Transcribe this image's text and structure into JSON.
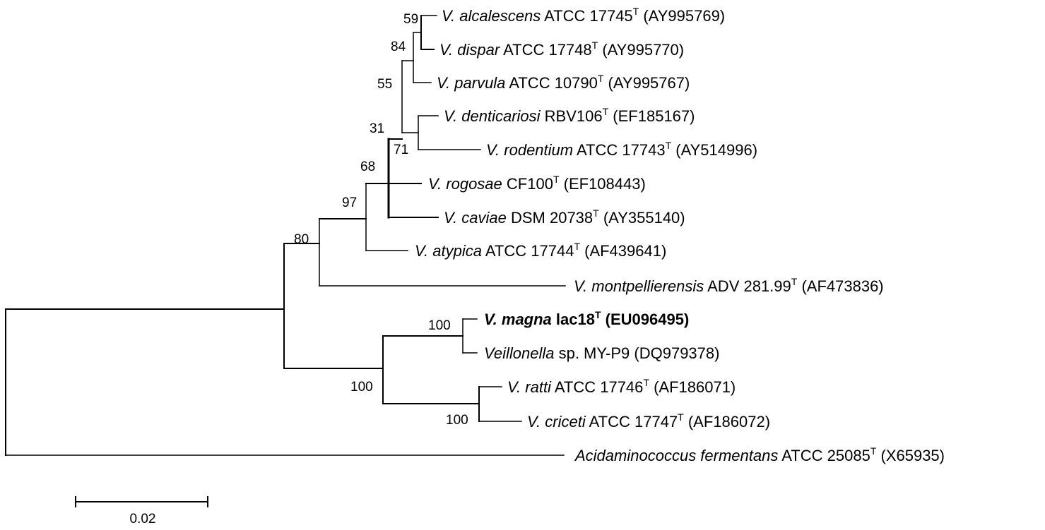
{
  "taxa": [
    {
      "id": "alcalescens",
      "genus": "V. alcalescens",
      "rest": " ATCC 17745",
      "sup": "T",
      "acc": " (AY995769)",
      "bold": false
    },
    {
      "id": "dispar",
      "genus": "V. dispar",
      "rest": " ATCC 17748",
      "sup": "T",
      "acc": " (AY995770)",
      "bold": false
    },
    {
      "id": "parvula",
      "genus": "V. parvula",
      "rest": " ATCC 10790",
      "sup": "T",
      "acc": " (AY995767)",
      "bold": false
    },
    {
      "id": "denticariosi",
      "genus": "V. denticariosi",
      "rest": " RBV106",
      "sup": "T",
      "acc": " (EF185167)",
      "bold": false
    },
    {
      "id": "rodentium",
      "genus": "V. rodentium",
      "rest": " ATCC 17743",
      "sup": "T",
      "acc": " (AY514996)",
      "bold": false
    },
    {
      "id": "rogosae",
      "genus": "V. rogosae",
      "rest": " CF100",
      "sup": "T",
      "acc": " (EF108443)",
      "bold": false
    },
    {
      "id": "caviae",
      "genus": "V. caviae",
      "rest": " DSM 20738",
      "sup": "T",
      "acc": " (AY355140)",
      "bold": false
    },
    {
      "id": "atypica",
      "genus": "V. atypica",
      "rest": " ATCC 17744",
      "sup": "T",
      "acc": " (AF439641)",
      "bold": false
    },
    {
      "id": "montpellierensis",
      "genus": "V. montpellierensis",
      "rest": " ADV 281.99",
      "sup": "T",
      "acc": " (AF473836)",
      "bold": false
    },
    {
      "id": "magna",
      "genus": "V. magna",
      "rest": " lac18",
      "sup": "T",
      "acc": " (EU096495)",
      "bold": true
    },
    {
      "id": "veillonella-sp",
      "genus": "Veillonella",
      "rest": " sp. MY-P9",
      "sup": "",
      "acc": " (DQ979378)",
      "bold": false
    },
    {
      "id": "ratti",
      "genus": "V. ratti",
      "rest": " ATCC 17746",
      "sup": "T",
      "acc": " (AF186071)",
      "bold": false
    },
    {
      "id": "criceti",
      "genus": "V. criceti",
      "rest": " ATCC 17747",
      "sup": "T",
      "acc": " (AF186072)",
      "bold": false
    },
    {
      "id": "acidaminococcus",
      "genus": "Acidaminococcus fermentans",
      "rest": " ATCC 25085",
      "sup": "T",
      "acc": " (X65935)",
      "bold": false
    }
  ],
  "bootstrap": [
    {
      "id": "n59",
      "value": "59"
    },
    {
      "id": "n84",
      "value": "84"
    },
    {
      "id": "n55",
      "value": "55"
    },
    {
      "id": "n31",
      "value": "31"
    },
    {
      "id": "n71",
      "value": "71"
    },
    {
      "id": "n68",
      "value": "68"
    },
    {
      "id": "n97",
      "value": "97"
    },
    {
      "id": "n80",
      "value": "80"
    },
    {
      "id": "n100a",
      "value": "100"
    },
    {
      "id": "n100b",
      "value": "100"
    },
    {
      "id": "n100c",
      "value": "100"
    }
  ],
  "scale_bar": {
    "label": "0.02",
    "value": 0.02
  }
}
